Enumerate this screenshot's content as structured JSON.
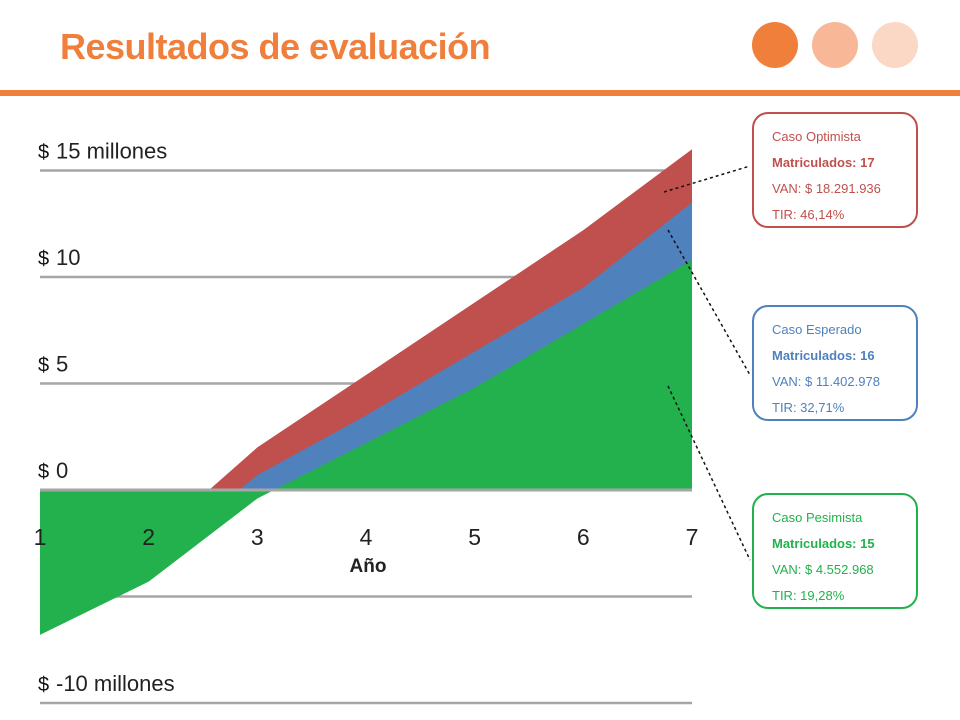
{
  "title": "Resultados de evaluación",
  "colors": {
    "accent": "#f07f3c",
    "dot1": "#f07f3c",
    "dot2": "#f8b796",
    "dot3": "#fbd8c5",
    "optimista": "#c0504d",
    "esperado": "#4f81bd",
    "pesimista": "#22b14c",
    "grid": "#a6a6a6"
  },
  "chart_data": {
    "type": "area",
    "xlabel": "Año",
    "ylabel": "",
    "x": [
      1,
      2,
      3,
      4,
      5,
      6,
      7
    ],
    "ylim": [
      -10,
      16
    ],
    "xlim": [
      1,
      7
    ],
    "y_tick_labels": [
      {
        "value": 15,
        "currency": "$",
        "text": "15 millones"
      },
      {
        "value": 10,
        "currency": "$",
        "text": "10"
      },
      {
        "value": 5,
        "currency": "$",
        "text": "5"
      },
      {
        "value": 0,
        "currency": "$",
        "text": "0"
      },
      {
        "value": -10,
        "currency": "$",
        "text": "-10 millones"
      }
    ],
    "gridlines": [
      15,
      10,
      5,
      0,
      -5,
      -10
    ],
    "series": [
      {
        "key": "optimista",
        "values": [
          -6,
          -2.5,
          2,
          5.4,
          8.8,
          12.2,
          16
        ]
      },
      {
        "key": "esperado",
        "values": [
          -6.4,
          -3.5,
          0.7,
          3.5,
          6.5,
          9.5,
          13.5
        ]
      },
      {
        "key": "pesimista",
        "values": [
          -6.8,
          -4.3,
          -0.4,
          2.2,
          4.8,
          7.8,
          10.8
        ]
      }
    ]
  },
  "cases": [
    {
      "key": "optimista",
      "title": "Caso Optimista",
      "enrolled": "Matriculados: 17",
      "van": "VAN: $ 18.291.936",
      "tir": "TIR: 46,14%"
    },
    {
      "key": "esperado",
      "title": "Caso Esperado",
      "enrolled": "Matriculados: 16",
      "van": "VAN: $ 11.402.978",
      "tir": "TIR: 32,71%"
    },
    {
      "key": "pesimista",
      "title": "Caso Pesimista",
      "enrolled": "Matriculados: 15",
      "van": "VAN: $ 4.552.968",
      "tir": "TIR: 19,28%"
    }
  ]
}
